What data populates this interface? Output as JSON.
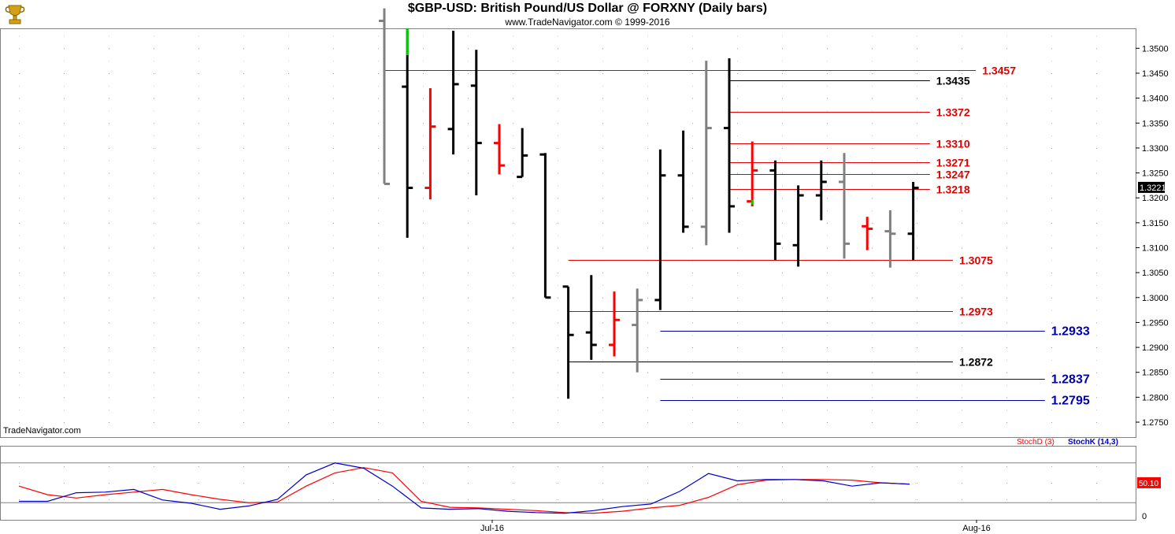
{
  "header": {
    "title": "$GBP-USD:  British Pound/US Dollar @ FORXNY  (Daily bars)",
    "subtitle": "www.TradeNavigator.com © 1999-2016",
    "logo_icon": "trophy-icon"
  },
  "watermark": "TradeNavigator.com",
  "colors": {
    "up_bar": "#000000",
    "down_bar": "#ff0000",
    "neutral_bar": "#808080",
    "highlight_bar": "#00cc00",
    "resistance_line": "#e00000",
    "support_line_blue": "#0000aa",
    "stochD": "#ff0000",
    "stochK": "#0000cc",
    "current_price_bg": "#000000",
    "stoch_value_bg": "#ff0000"
  },
  "chart_data": [
    {
      "type": "ohlc",
      "title": "$GBP-USD:  British Pound/US Dollar @ FORXNY  (Daily bars)",
      "ylim": [
        1.272,
        1.354
      ],
      "y_ticks": [
        "1.3500",
        "1.3450",
        "1.3400",
        "1.3350",
        "1.3300",
        "1.3250",
        "1.3200",
        "1.3150",
        "1.3100",
        "1.3050",
        "1.3000",
        "1.2950",
        "1.2900",
        "1.2850",
        "1.2800",
        "1.2750"
      ],
      "x_ticks": [
        "Jul-16",
        "Aug-16"
      ],
      "current_price": "1.3221",
      "bars": [
        {
          "o": 1.3555,
          "h": 1.358,
          "l": 1.3228,
          "c": 1.3228,
          "color": "neutral"
        },
        {
          "o": 1.3423,
          "h": 1.354,
          "l": 1.312,
          "c": 1.322,
          "color": "up",
          "top_color": "highlight"
        },
        {
          "o": 1.322,
          "h": 1.342,
          "l": 1.3197,
          "c": 1.3343,
          "color": "down"
        },
        {
          "o": 1.3338,
          "h": 1.3535,
          "l": 1.3287,
          "c": 1.3428,
          "color": "up"
        },
        {
          "o": 1.3425,
          "h": 1.3497,
          "l": 1.3205,
          "c": 1.331,
          "color": "up"
        },
        {
          "o": 1.331,
          "h": 1.3348,
          "l": 1.3247,
          "c": 1.3265,
          "color": "down"
        },
        {
          "o": 1.3242,
          "h": 1.334,
          "l": 1.3242,
          "c": 1.3285,
          "color": "up"
        },
        {
          "o": 1.3287,
          "h": 1.329,
          "l": 1.3,
          "c": 1.3,
          "color": "up"
        },
        {
          "o": 1.3022,
          "h": 1.3022,
          "l": 1.2797,
          "c": 1.2925,
          "color": "up"
        },
        {
          "o": 1.293,
          "h": 1.3045,
          "l": 1.2875,
          "c": 1.2905,
          "color": "up"
        },
        {
          "o": 1.2905,
          "h": 1.3012,
          "l": 1.2882,
          "c": 1.2955,
          "color": "down"
        },
        {
          "o": 1.2945,
          "h": 1.3018,
          "l": 1.285,
          "c": 1.2995,
          "color": "neutral"
        },
        {
          "o": 1.2995,
          "h": 1.3297,
          "l": 1.2975,
          "c": 1.3245,
          "color": "up"
        },
        {
          "o": 1.3245,
          "h": 1.3335,
          "l": 1.313,
          "c": 1.3142,
          "color": "up"
        },
        {
          "o": 1.3142,
          "h": 1.3475,
          "l": 1.3105,
          "c": 1.334,
          "color": "neutral"
        },
        {
          "o": 1.334,
          "h": 1.348,
          "l": 1.313,
          "c": 1.3183,
          "color": "up"
        },
        {
          "o": 1.3193,
          "h": 1.3313,
          "l": 1.3183,
          "c": 1.3255,
          "color": "down",
          "bottom_color": "highlight"
        },
        {
          "o": 1.3255,
          "h": 1.3275,
          "l": 1.3075,
          "c": 1.3108,
          "color": "up"
        },
        {
          "o": 1.3105,
          "h": 1.3225,
          "l": 1.3062,
          "c": 1.3205,
          "color": "up"
        },
        {
          "o": 1.3205,
          "h": 1.3275,
          "l": 1.3155,
          "c": 1.3232,
          "color": "up"
        },
        {
          "o": 1.3232,
          "h": 1.329,
          "l": 1.3078,
          "c": 1.3108,
          "color": "neutral"
        },
        {
          "o": 1.3143,
          "h": 1.3162,
          "l": 1.3095,
          "c": 1.3138,
          "color": "down"
        },
        {
          "o": 1.3133,
          "h": 1.3175,
          "l": 1.306,
          "c": 1.3128,
          "color": "neutral"
        },
        {
          "o": 1.3128,
          "h": 1.3232,
          "l": 1.3075,
          "c": 1.322,
          "color": "up"
        }
      ],
      "levels": [
        {
          "value": 1.3457,
          "label": "1.3457",
          "color": "red",
          "from_bar": 0,
          "label_bar": 26
        },
        {
          "value": 1.3435,
          "label": "1.3435",
          "color": "black",
          "from_bar": 15,
          "label_bar": 24
        },
        {
          "value": 1.3372,
          "label": "1.3372",
          "color": "red",
          "from_bar": 15,
          "label_bar": 24
        },
        {
          "value": 1.331,
          "label": "1.3310",
          "color": "red",
          "from_bar": 15,
          "label_bar": 24
        },
        {
          "value": 1.3271,
          "label": "1.3271",
          "color": "red",
          "from_bar": 15,
          "label_bar": 24
        },
        {
          "value": 1.3247,
          "label": "1.3247",
          "color": "red",
          "from_bar": 15,
          "label_bar": 24
        },
        {
          "value": 1.3218,
          "label": "1.3218",
          "color": "red",
          "from_bar": 15,
          "label_bar": 24
        },
        {
          "value": 1.3075,
          "label": "1.3075",
          "color": "red",
          "from_bar": 8,
          "label_bar": 25
        },
        {
          "value": 1.2973,
          "label": "1.2973",
          "color": "red",
          "from_bar": 8,
          "label_bar": 25
        },
        {
          "value": 1.2933,
          "label": "1.2933",
          "color": "blue",
          "from_bar": 12,
          "label_bar": 29
        },
        {
          "value": 1.2872,
          "label": "1.2872",
          "color": "black",
          "from_bar": 8,
          "label_bar": 25
        },
        {
          "value": 1.2837,
          "label": "1.2837",
          "color": "blue",
          "from_bar": 12,
          "label_bar": 29
        },
        {
          "value": 1.2795,
          "label": "1.2795",
          "color": "blue",
          "from_bar": 12,
          "label_bar": 29
        }
      ]
    },
    {
      "type": "line",
      "series": [
        {
          "name": "StochD (3)",
          "values": [
            45,
            32,
            27,
            32,
            36,
            40,
            32,
            25,
            20,
            21,
            45,
            65,
            73,
            65,
            22,
            13,
            12,
            10,
            8,
            5,
            4,
            7,
            12,
            16,
            28,
            47,
            54,
            55,
            55,
            54,
            50,
            48
          ]
        },
        {
          "name": "StochK (14,3)",
          "values": [
            22,
            22,
            35,
            36,
            40,
            24,
            19,
            10,
            15,
            25,
            62,
            80,
            72,
            45,
            12,
            10,
            11,
            7,
            5,
            4,
            8,
            14,
            18,
            37,
            64,
            53,
            55,
            55,
            53,
            45,
            50,
            48
          ]
        }
      ],
      "ylim": [
        0,
        100
      ],
      "y_ticks": [
        "0"
      ],
      "reference_lines": [
        80,
        20
      ],
      "current_value": "50.10"
    }
  ]
}
